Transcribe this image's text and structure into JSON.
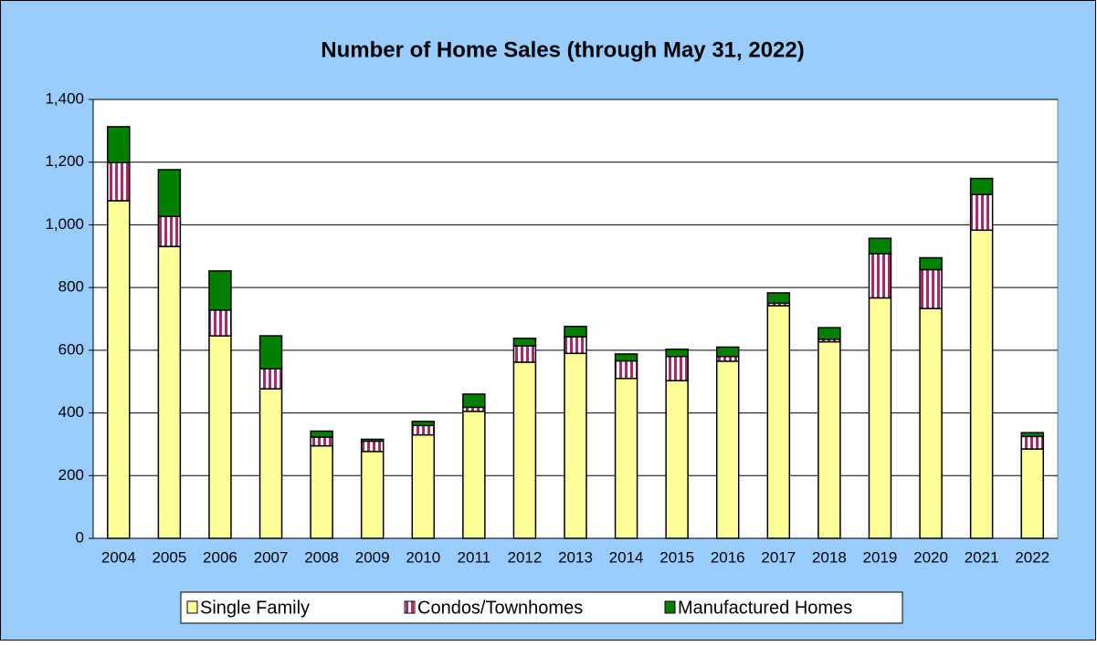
{
  "chart_data": {
    "type": "stacked_bar",
    "title": "Number of Home Sales (through May 31, 2022)",
    "categories": [
      "2004",
      "2005",
      "2006",
      "2007",
      "2008",
      "2009",
      "2010",
      "2011",
      "2012",
      "2013",
      "2014",
      "2015",
      "2016",
      "2017",
      "2018",
      "2019",
      "2020",
      "2021",
      "2022"
    ],
    "series": [
      {
        "name": "Single Family",
        "color": "#ffff99",
        "values": [
          1077,
          931,
          646,
          477,
          295,
          277,
          330,
          405,
          562,
          590,
          510,
          503,
          565,
          742,
          627,
          767,
          733,
          983,
          285
        ]
      },
      {
        "name": "Condos/Townhomes",
        "color": "#993366",
        "values": [
          122,
          96,
          82,
          64,
          28,
          33,
          30,
          13,
          52,
          53,
          56,
          77,
          15,
          8,
          8,
          141,
          124,
          114,
          40
        ]
      },
      {
        "name": "Manufactured Homes",
        "color": "#008000",
        "values": [
          114,
          149,
          125,
          105,
          19,
          6,
          13,
          42,
          24,
          33,
          22,
          23,
          30,
          33,
          37,
          49,
          38,
          51,
          12
        ]
      }
    ],
    "ylim": [
      0,
      1400
    ],
    "yticks": [
      0,
      200,
      400,
      600,
      800,
      {
        "value": 1000,
        "label": "1,000"
      },
      {
        "value": 1200,
        "label": "1,200"
      },
      {
        "value": 1400,
        "label": "1,400"
      }
    ],
    "grid": true,
    "legend": "bottom"
  }
}
